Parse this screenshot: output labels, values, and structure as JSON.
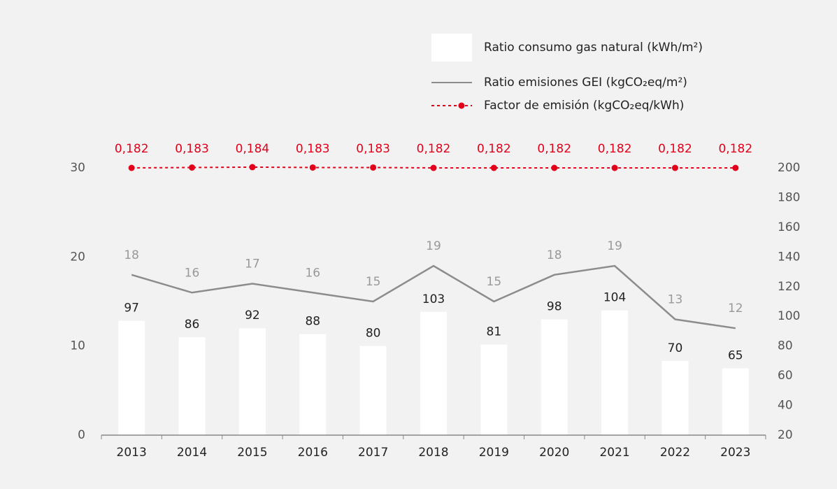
{
  "chart_data": {
    "type": "bar",
    "categories": [
      "2013",
      "2014",
      "2015",
      "2016",
      "2017",
      "2018",
      "2019",
      "2020",
      "2021",
      "2022",
      "2023"
    ],
    "series": [
      {
        "name": "Ratio consumo gas natural (kWh/m²)",
        "type": "bar",
        "axis": "y2",
        "color": "#ffffff",
        "values": [
          97,
          86,
          92,
          88,
          80,
          103,
          81,
          98,
          104,
          70,
          65
        ]
      },
      {
        "name": "Ratio emisiones GEI (kgCO₂eq/m²)",
        "type": "line",
        "axis": "y",
        "color": "#8c8c8c",
        "values": [
          18,
          16,
          17,
          16,
          15,
          19,
          15,
          18,
          19,
          13,
          12
        ]
      },
      {
        "name": "Factor de emisión (kgCO₂eq/kWh)",
        "type": "dotted-line",
        "color": "#e2001a",
        "values": [
          0.182,
          0.183,
          0.184,
          0.183,
          0.183,
          0.182,
          0.182,
          0.182,
          0.182,
          0.182,
          0.182
        ],
        "value_labels": [
          "0,182",
          "0,183",
          "0,184",
          "0,183",
          "0,183",
          "0,182",
          "0,182",
          "0,182",
          "0,182",
          "0,182",
          "0,182"
        ]
      }
    ],
    "ylim": [
      0,
      30
    ],
    "yticks": [
      0,
      10,
      20,
      30
    ],
    "y2lim": [
      20,
      200
    ],
    "y2ticks": [
      20,
      40,
      60,
      80,
      100,
      120,
      140,
      160,
      180,
      200
    ],
    "grid": false
  }
}
